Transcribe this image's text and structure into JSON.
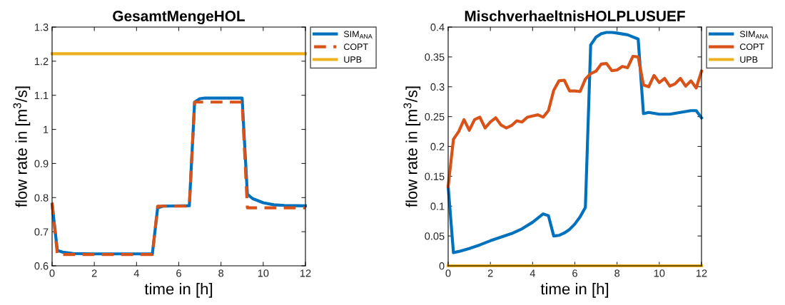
{
  "chart_data": [
    {
      "type": "line",
      "title": "GesamtMengeHOL",
      "xlabel": "time in [h]",
      "ylabel": "flow rate in [m$^{3}$/s]",
      "xlim": [
        0,
        12
      ],
      "ylim": [
        0.6,
        1.3
      ],
      "xticks": [
        0,
        2,
        4,
        6,
        8,
        10,
        12
      ],
      "yticks": [
        0.6,
        0.7,
        0.8,
        0.9,
        1,
        1.1,
        1.2,
        1.3
      ],
      "legend": "top right",
      "grid": false,
      "series": [
        {
          "name": "SIM$_{ANA}$",
          "color": "#0072bd",
          "line_style": "solid",
          "x": [
            0,
            0.25,
            0.5,
            1,
            2,
            4.75,
            5,
            5.25,
            6.5,
            6.75,
            7,
            7.25,
            9,
            9.25,
            9.5,
            10,
            10.5,
            11,
            12
          ],
          "values": [
            0.78,
            0.645,
            0.64,
            0.636,
            0.635,
            0.635,
            0.77,
            0.775,
            0.776,
            1.08,
            1.09,
            1.092,
            1.092,
            0.81,
            0.797,
            0.785,
            0.779,
            0.777,
            0.776
          ]
        },
        {
          "name": "COPT",
          "color": "#d95319",
          "line_style": "dashed",
          "x": [
            0,
            0.25,
            4.75,
            5,
            6.5,
            6.75,
            9,
            9.25,
            12
          ],
          "values": [
            0.785,
            0.633,
            0.633,
            0.775,
            0.775,
            1.08,
            1.08,
            0.77,
            0.77
          ]
        },
        {
          "name": "UPB",
          "color": "#edb120",
          "line_style": "solid",
          "x": [
            0,
            12
          ],
          "values": [
            1.222,
            1.222
          ]
        }
      ]
    },
    {
      "type": "line",
      "title": "MischverhaeltnisHOLPLUSUEF",
      "xlabel": "time in [h]",
      "ylabel": "flow rate in [m$^{3}$/s]",
      "xlim": [
        0,
        12
      ],
      "ylim": [
        0,
        0.4
      ],
      "xticks": [
        0,
        2,
        4,
        6,
        8,
        10,
        12
      ],
      "yticks": [
        0,
        0.05,
        0.1,
        0.15,
        0.2,
        0.25,
        0.3,
        0.35,
        0.4
      ],
      "legend": "top right",
      "grid": false,
      "series": [
        {
          "name": "SIM$_{ANA}$",
          "color": "#0072bd",
          "line_style": "solid",
          "x": [
            0,
            0.25,
            0.5,
            1,
            1.5,
            2,
            2.5,
            3,
            3.5,
            4,
            4.5,
            4.75,
            5,
            5.25,
            5.5,
            5.75,
            6,
            6.25,
            6.5,
            6.75,
            7,
            7.25,
            7.5,
            7.75,
            8,
            8.5,
            9,
            9.25,
            9.5,
            10,
            10.5,
            11,
            11.5,
            11.75,
            12
          ],
          "values": [
            0.133,
            0.022,
            0.024,
            0.029,
            0.035,
            0.042,
            0.048,
            0.054,
            0.062,
            0.073,
            0.087,
            0.084,
            0.05,
            0.051,
            0.055,
            0.061,
            0.07,
            0.082,
            0.098,
            0.37,
            0.383,
            0.389,
            0.391,
            0.391,
            0.39,
            0.387,
            0.38,
            0.255,
            0.257,
            0.254,
            0.254,
            0.257,
            0.26,
            0.26,
            0.248
          ]
        },
        {
          "name": "COPT",
          "color": "#d95319",
          "line_style": "solid",
          "x": [
            0,
            0.25,
            0.5,
            0.75,
            1,
            1.25,
            1.5,
            1.75,
            2,
            2.25,
            2.5,
            2.75,
            3,
            3.25,
            3.5,
            3.75,
            4,
            4.25,
            4.5,
            4.75,
            5,
            5.25,
            5.5,
            5.75,
            6,
            6.25,
            6.5,
            6.75,
            7,
            7.25,
            7.5,
            7.75,
            8,
            8.25,
            8.5,
            8.75,
            9,
            9.25,
            9.5,
            9.75,
            10,
            10.25,
            10.5,
            10.75,
            11,
            11.25,
            11.5,
            11.75,
            12
          ],
          "values": [
            0.133,
            0.212,
            0.225,
            0.245,
            0.227,
            0.245,
            0.249,
            0.231,
            0.241,
            0.248,
            0.236,
            0.231,
            0.235,
            0.243,
            0.241,
            0.249,
            0.251,
            0.253,
            0.249,
            0.26,
            0.294,
            0.31,
            0.311,
            0.293,
            0.293,
            0.292,
            0.313,
            0.322,
            0.326,
            0.338,
            0.339,
            0.327,
            0.328,
            0.334,
            0.332,
            0.351,
            0.35,
            0.303,
            0.3,
            0.319,
            0.307,
            0.314,
            0.301,
            0.305,
            0.314,
            0.301,
            0.31,
            0.298,
            0.326
          ]
        },
        {
          "name": "UPB",
          "color": "#edb120",
          "line_style": "solid",
          "x": [
            0,
            12
          ],
          "values": [
            0,
            0
          ]
        }
      ]
    }
  ]
}
